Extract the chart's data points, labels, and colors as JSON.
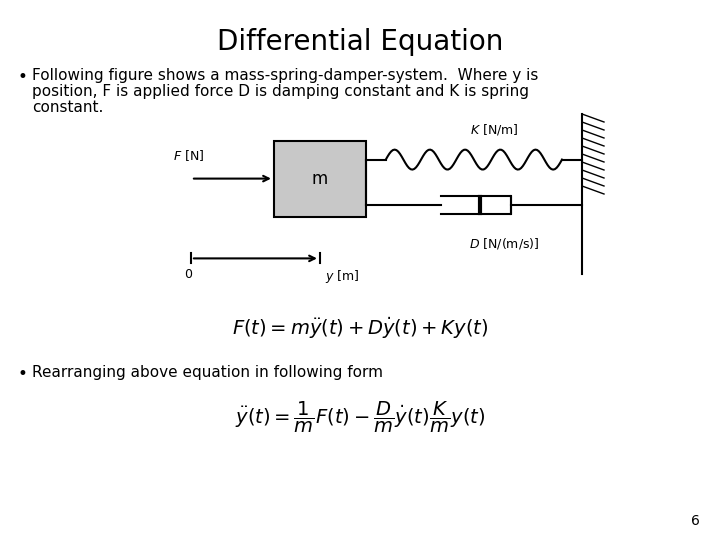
{
  "title": "Differential Equation",
  "title_fontsize": 20,
  "bullet1_line1": "Following figure shows a mass-spring-damper-system.  Where y is",
  "bullet1_line2": "position, F is applied force D is damping constant and K is spring",
  "bullet1_line3": "constant.",
  "bullet2": "Rearranging above equation in following form",
  "bg_color": "#ffffff",
  "text_color": "#000000",
  "page_number": "6",
  "body_fontsize": 11
}
